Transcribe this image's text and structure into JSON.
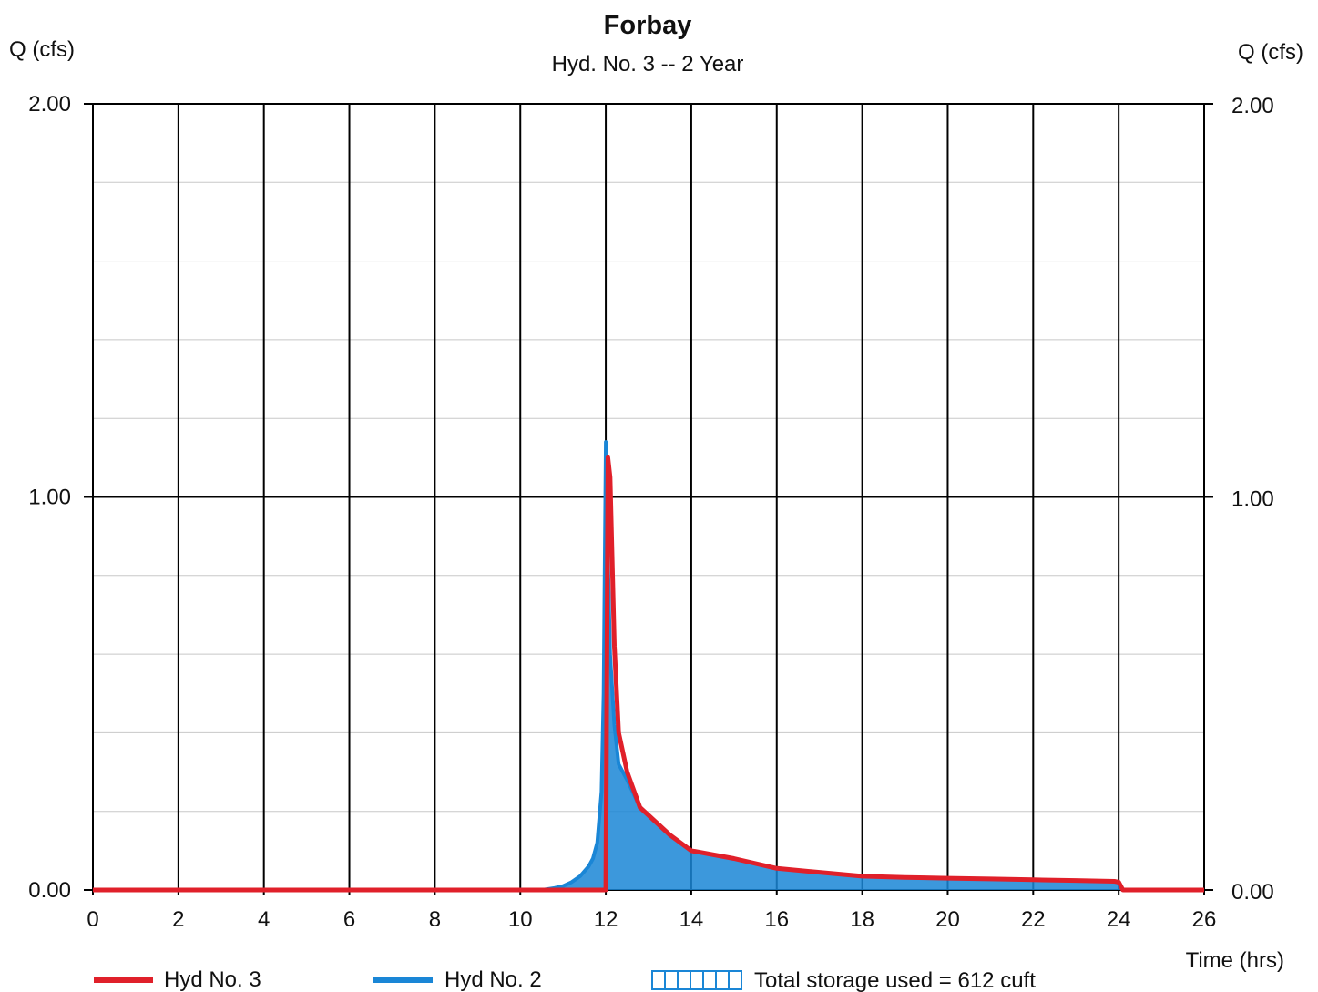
{
  "chart_data": {
    "type": "line",
    "title": "Forbay",
    "subtitle": "Hyd. No. 3 -- 2 Year",
    "ylabel_left": "Q (cfs)",
    "ylabel_right": "Q (cfs)",
    "xlabel": "Time (hrs)",
    "xlim": [
      0,
      26
    ],
    "ylim": [
      0,
      2
    ],
    "x_ticks": [
      "0",
      "2",
      "4",
      "6",
      "8",
      "10",
      "12",
      "14",
      "16",
      "18",
      "20",
      "22",
      "24",
      "26"
    ],
    "y_ticks_left": [
      "0.00",
      "1.00",
      "2.00"
    ],
    "y_ticks_right": [
      "0.00",
      "1.00",
      "2.00"
    ],
    "grid": true,
    "legend_placement": "bottom",
    "series": [
      {
        "name": "Hyd No. 3",
        "color": "#e0202a",
        "x": [
          0,
          10,
          11,
          11.8,
          12.0,
          12.05,
          12.1,
          12.2,
          12.3,
          12.5,
          12.8,
          13.0,
          13.5,
          14.0,
          15.0,
          16.0,
          17.0,
          18.0,
          19.0,
          20.0,
          21.0,
          22.0,
          23.0,
          23.9,
          24.0,
          24.1,
          26.0
        ],
        "y": [
          0,
          0,
          0,
          0,
          0,
          1.1,
          1.05,
          0.62,
          0.4,
          0.3,
          0.21,
          0.19,
          0.14,
          0.1,
          0.08,
          0.055,
          0.045,
          0.035,
          0.032,
          0.03,
          0.028,
          0.026,
          0.024,
          0.022,
          0.02,
          0.0,
          0
        ]
      },
      {
        "name": "Hyd No. 2",
        "color": "#1a86d6",
        "x": [
          0,
          10.5,
          10.8,
          11.0,
          11.2,
          11.4,
          11.6,
          11.7,
          11.8,
          11.9,
          11.95,
          12.0,
          12.05,
          12.1,
          12.2,
          12.3,
          12.5,
          12.8,
          13.0,
          13.5,
          14.0,
          15.0,
          16.0,
          17.0,
          18.0,
          19.0,
          20.0,
          21.0,
          22.0,
          23.0,
          23.9,
          24.0,
          24.1,
          26.0
        ],
        "y": [
          0,
          0,
          0.005,
          0.01,
          0.02,
          0.035,
          0.06,
          0.08,
          0.12,
          0.25,
          0.5,
          1.14,
          0.85,
          0.6,
          0.42,
          0.32,
          0.28,
          0.21,
          0.19,
          0.14,
          0.1,
          0.08,
          0.055,
          0.045,
          0.035,
          0.032,
          0.03,
          0.028,
          0.026,
          0.024,
          0.022,
          0.02,
          0.0,
          0
        ]
      }
    ],
    "annotation": "Total storage used = 612 cuft"
  }
}
